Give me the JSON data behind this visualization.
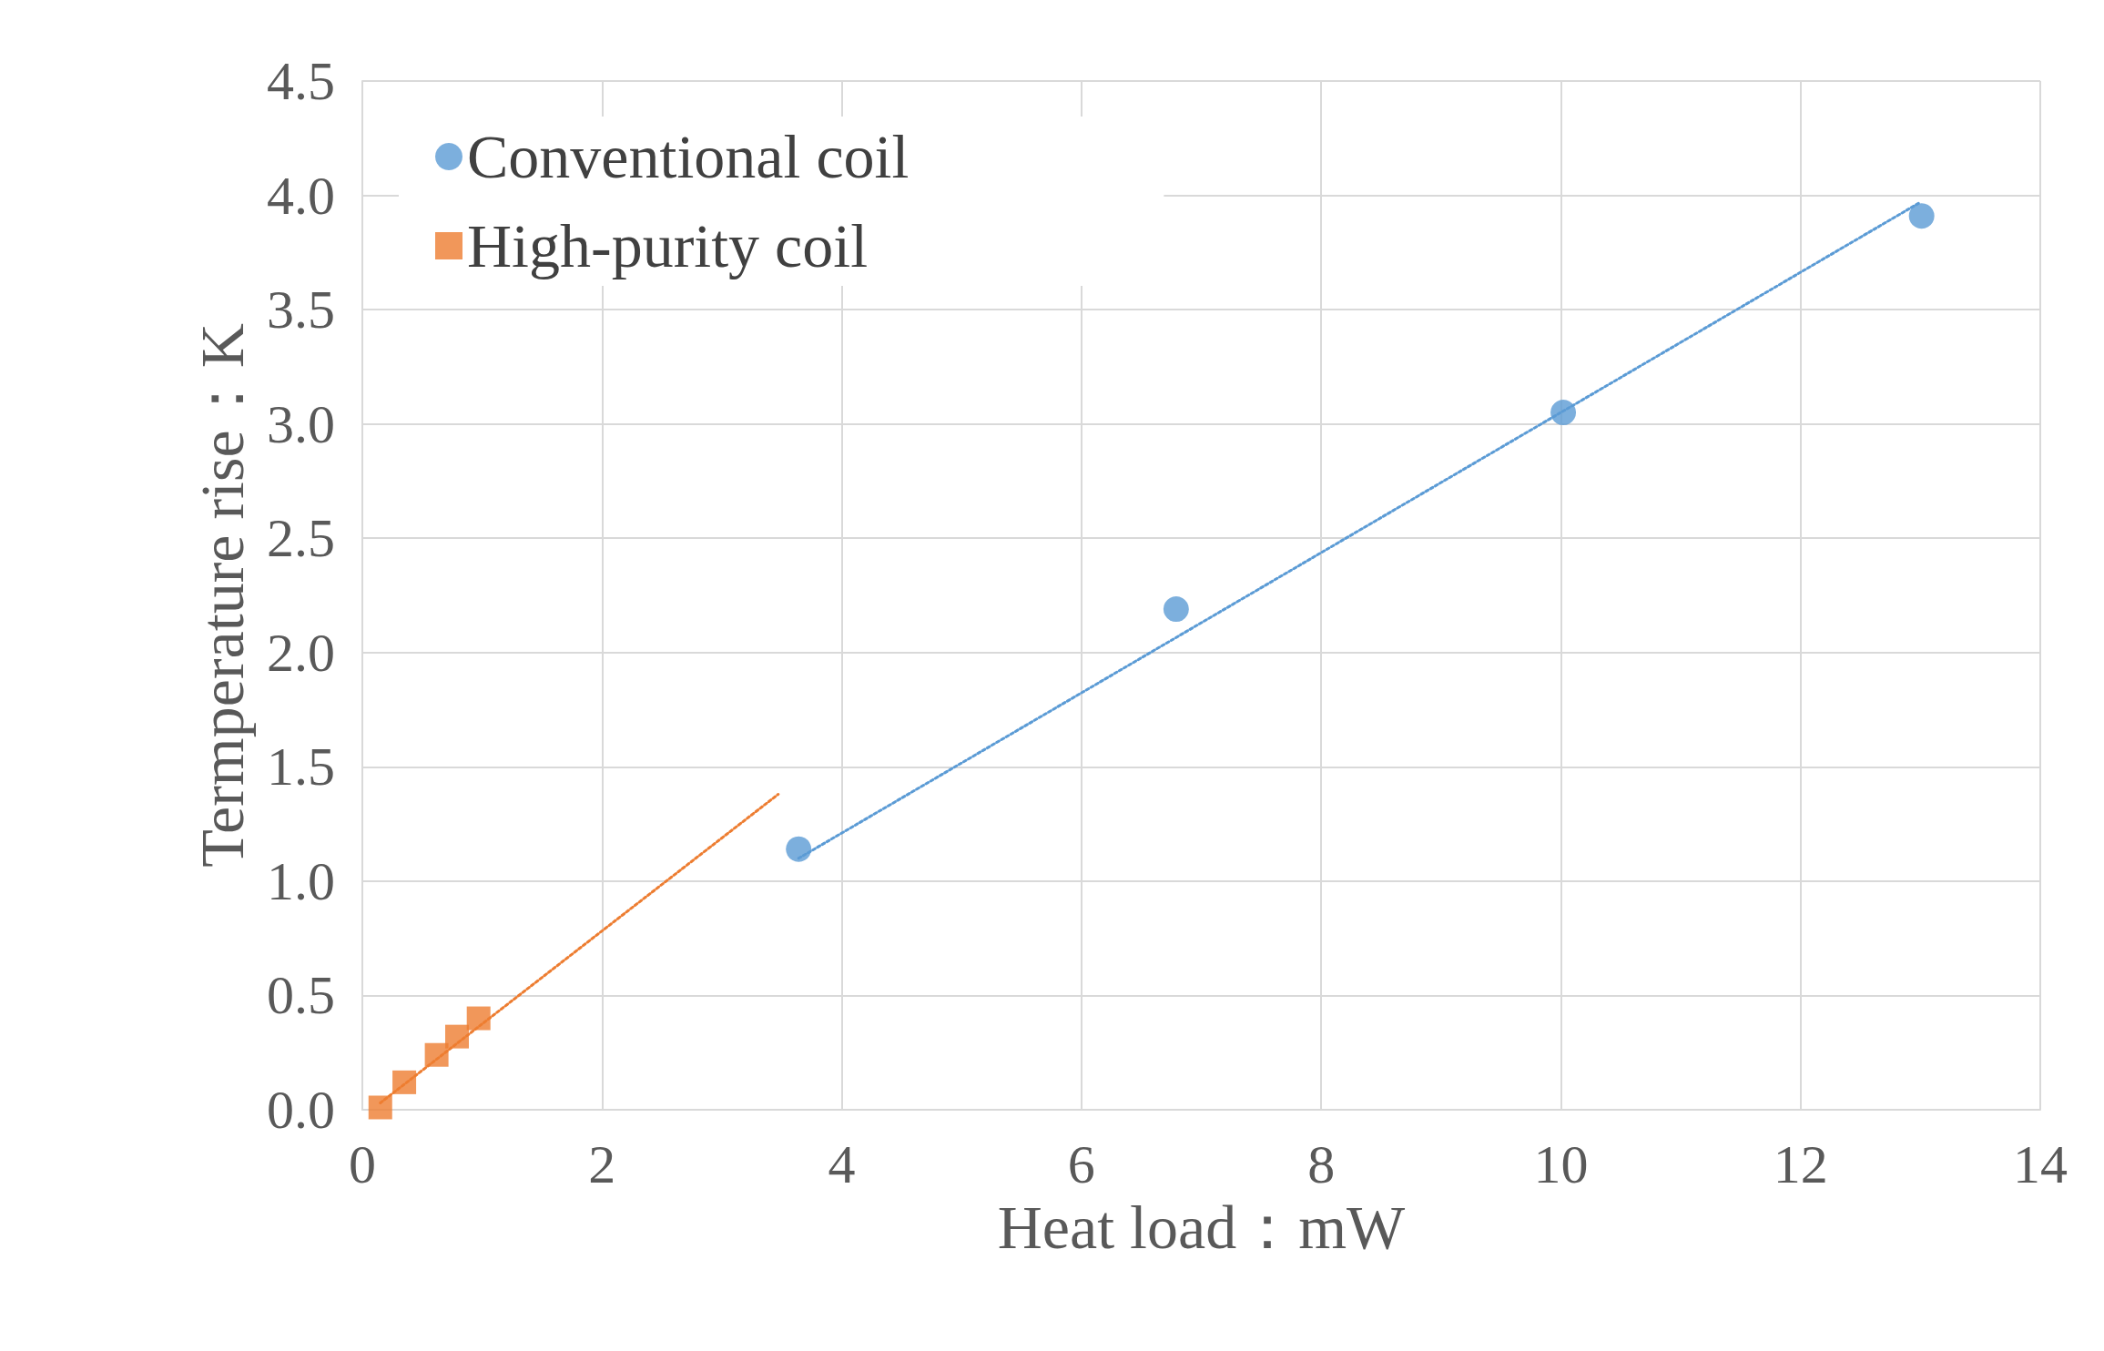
{
  "chart_data": {
    "type": "scatter",
    "xlabel": "Heat load：mW",
    "ylabel": "Termperature rise：K",
    "xlim": [
      0,
      14
    ],
    "xticks": [
      0,
      2,
      4,
      6,
      8,
      10,
      12,
      14
    ],
    "ylim": [
      0,
      4.5
    ],
    "yticks": [
      {
        "value": 0,
        "label": "0.0"
      },
      0.5,
      {
        "value": 1,
        "label": "1.0"
      },
      1.5,
      {
        "value": 2,
        "label": "2.0"
      },
      2.5,
      {
        "value": 3,
        "label": "3.0"
      },
      3.5,
      {
        "value": 4,
        "label": "4.0"
      },
      4.5
    ],
    "grid": true,
    "legend": "top left",
    "series": [
      {
        "name": "Conventional coil",
        "color": "#5b9bd5",
        "marker": "circle",
        "x": [
          3.64,
          6.79,
          10.02,
          13.01
        ],
        "values": [
          1.14,
          2.19,
          3.05,
          3.91
        ]
      },
      {
        "name": "High-purity coil",
        "color": "#ed7d31",
        "marker": "square",
        "x": [
          0.15,
          0.35,
          0.62,
          0.79,
          0.97
        ],
        "values": [
          0.01,
          0.12,
          0.24,
          0.32,
          0.4
        ]
      },
      {
        "type": "line",
        "color": "#5b9bd5",
        "marker": "none",
        "line_style": "dotted",
        "x": [
          3.64,
          13.0
        ],
        "values": [
          1.1,
          3.97
        ]
      },
      {
        "type": "line",
        "color": "#ed7d31",
        "marker": "none",
        "line_style": "dotted",
        "x": [
          0.15,
          3.47
        ],
        "values": [
          0.03,
          1.38
        ]
      }
    ]
  }
}
